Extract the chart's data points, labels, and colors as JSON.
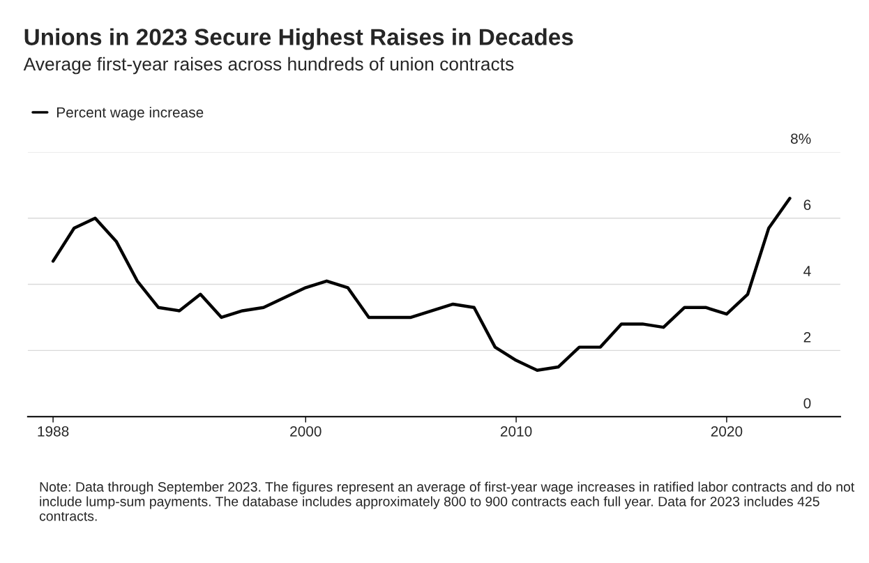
{
  "chart_data": {
    "type": "line",
    "title": "Unions in 2023 Secure Highest Raises in Decades",
    "subtitle": "Average first-year raises across hundreds of union contracts",
    "x": [
      1988,
      1989,
      1990,
      1991,
      1992,
      1993,
      1994,
      1995,
      1996,
      1997,
      1998,
      1999,
      2000,
      2001,
      2002,
      2003,
      2004,
      2005,
      2006,
      2007,
      2008,
      2009,
      2010,
      2011,
      2012,
      2013,
      2014,
      2015,
      2016,
      2017,
      2018,
      2019,
      2020,
      2021,
      2022,
      2023
    ],
    "series": [
      {
        "name": "Percent wage increase",
        "color": "#000000",
        "values": [
          4.7,
          5.7,
          6.0,
          5.3,
          4.1,
          3.3,
          3.2,
          3.7,
          3.0,
          3.2,
          3.3,
          3.6,
          3.9,
          4.1,
          3.9,
          3.0,
          3.0,
          3.0,
          3.2,
          3.4,
          3.3,
          2.1,
          1.7,
          1.4,
          1.5,
          2.1,
          2.1,
          2.8,
          2.8,
          2.7,
          3.3,
          3.3,
          3.1,
          3.7,
          5.7,
          6.6
        ]
      }
    ],
    "xlim": [
      1986.8,
      2025.4
    ],
    "ylim": [
      0,
      8
    ],
    "xticks": [
      1988,
      2000,
      2010,
      2020
    ],
    "yticks": [
      0,
      2,
      4,
      6,
      {
        "value": 8,
        "label": "8%"
      }
    ],
    "grid": "y",
    "legend": "top left",
    "marker": "none",
    "line_style": "solid",
    "annotations": [
      "Note: Data through September 2023. The figures represent an average of first-year wage increases in ratified labor contracts and do not include lump-sum payments. The database includes approximately 800 to 900 contracts each full year. Data for 2023 includes 425 contracts."
    ]
  }
}
